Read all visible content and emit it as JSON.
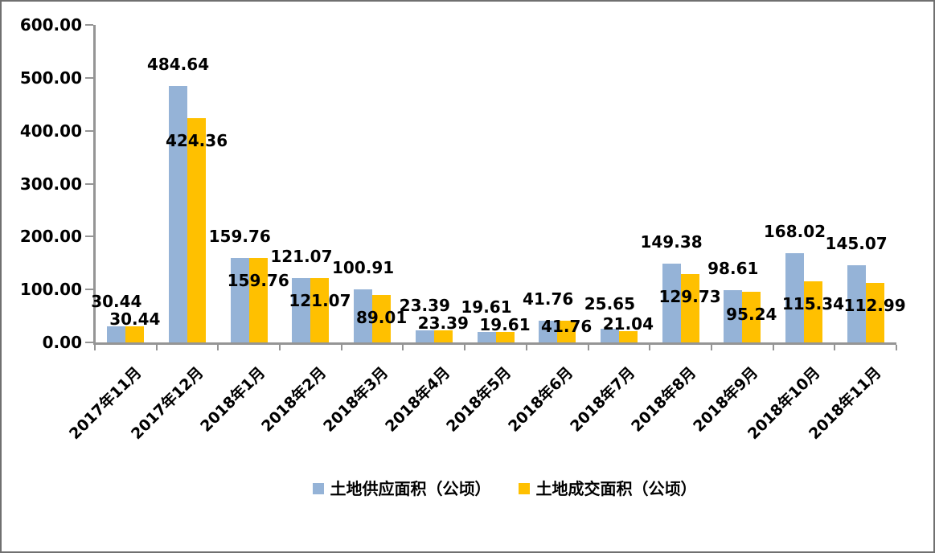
{
  "chart_data": {
    "type": "bar",
    "title": "",
    "categories": [
      "2017年11月",
      "2017年12月",
      "2018年1月",
      "2018年2月",
      "2018年3月",
      "2018年4月",
      "2018年5月",
      "2018年6月",
      "2018年7月",
      "2018年8月",
      "2018年9月",
      "2018年10月",
      "2018年11月"
    ],
    "series": [
      {
        "name": "土地供应面积（公顷）",
        "color": "#95B3D7",
        "values": [
          30.44,
          484.64,
          159.76,
          121.07,
          100.91,
          23.39,
          19.61,
          41.76,
          25.65,
          149.38,
          98.61,
          168.02,
          145.07
        ]
      },
      {
        "name": "土地成交面积（公顷）",
        "color": "#FFC000",
        "values": [
          30.44,
          424.36,
          159.76,
          121.07,
          89.01,
          23.39,
          19.61,
          41.76,
          21.04,
          129.73,
          95.24,
          115.34,
          112.99
        ]
      }
    ],
    "ylim": [
      0,
      600
    ],
    "ytick_step": 100,
    "ytick_labels": [
      "0.00",
      "100.00",
      "200.00",
      "300.00",
      "400.00",
      "500.00",
      "600.00"
    ],
    "grid": false,
    "legend_position": "bottom",
    "data_labels": true,
    "axis_color": "#959595",
    "text_color": "#000000",
    "background": "#FFFFFF"
  }
}
